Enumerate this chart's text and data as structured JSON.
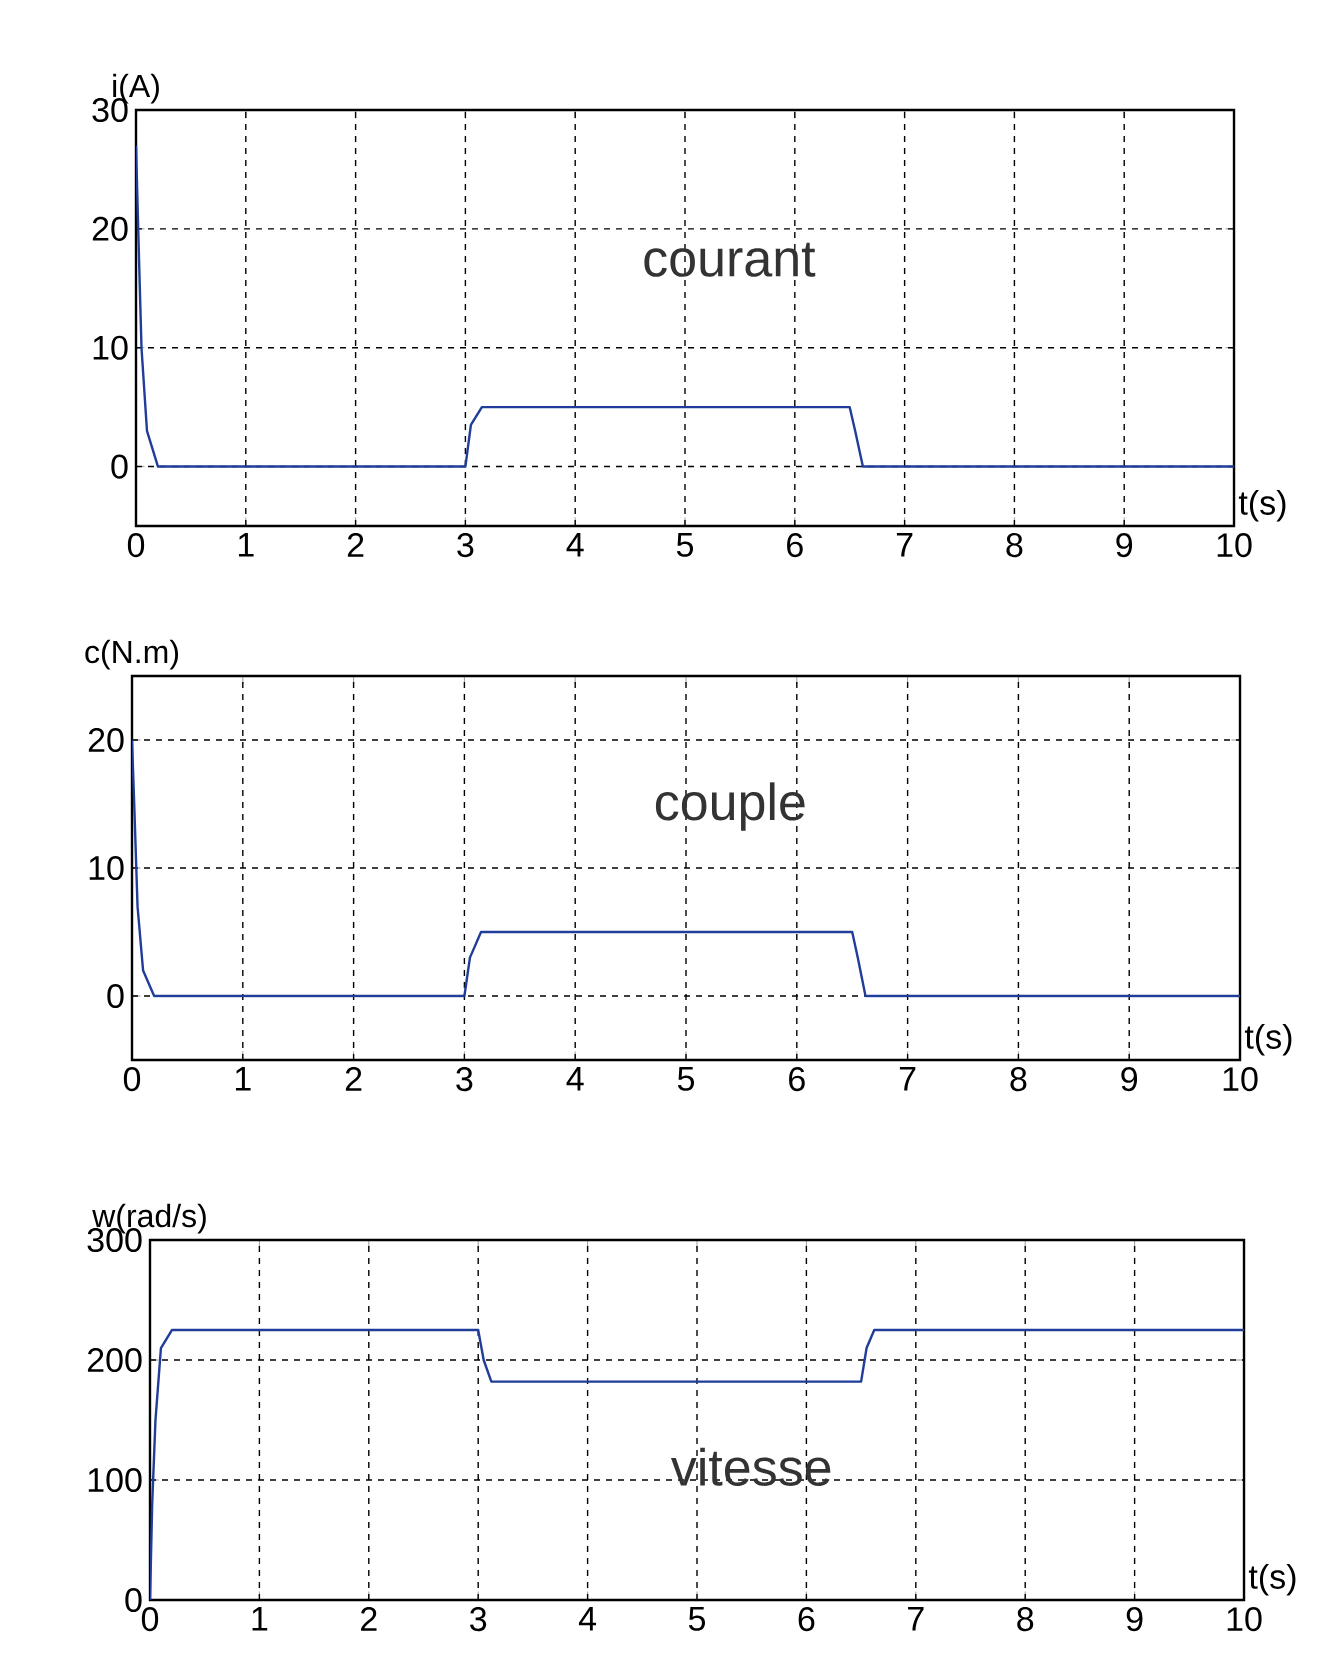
{
  "chart_data": [
    {
      "type": "line",
      "xlabel": "t(s)",
      "ylabel": "i(A)",
      "xlim": [
        0,
        10
      ],
      "ylim": [
        -5,
        30
      ],
      "xticks": [
        0,
        1,
        2,
        3,
        4,
        5,
        6,
        7,
        8,
        9,
        10
      ],
      "yticks": [
        0,
        10,
        20,
        30
      ],
      "grid": true,
      "marker": "none",
      "annotations": [
        "courant"
      ],
      "series": [
        {
          "color": "#1f3d99",
          "x": [
            0,
            0.02,
            0.05,
            0.1,
            0.2,
            3,
            3.05,
            3.15,
            6.5,
            6.55,
            6.62,
            10
          ],
          "values": [
            27,
            20,
            10,
            3,
            0,
            0,
            3.5,
            5,
            5,
            3,
            0,
            0
          ]
        }
      ]
    },
    {
      "type": "line",
      "xlabel": "t(s)",
      "ylabel": "c(N.m)",
      "xlim": [
        0,
        10
      ],
      "ylim": [
        -5,
        25
      ],
      "xticks": [
        0,
        1,
        2,
        3,
        4,
        5,
        6,
        7,
        8,
        9,
        10
      ],
      "yticks": [
        0,
        10,
        20
      ],
      "grid": true,
      "marker": "none",
      "annotations": [
        "couple"
      ],
      "series": [
        {
          "color": "#1f3d99",
          "x": [
            0,
            0.02,
            0.05,
            0.1,
            0.2,
            3,
            3.05,
            3.15,
            6.5,
            6.55,
            6.62,
            10
          ],
          "values": [
            20,
            15,
            7,
            2,
            0,
            0,
            3,
            5,
            5,
            3,
            0,
            0
          ]
        }
      ]
    },
    {
      "type": "line",
      "xlabel": "t(s)",
      "ylabel": "w(rad/s)",
      "xlim": [
        0,
        10
      ],
      "ylim": [
        0,
        300
      ],
      "xticks": [
        0,
        1,
        2,
        3,
        4,
        5,
        6,
        7,
        8,
        9,
        10
      ],
      "yticks": [
        0,
        100,
        200,
        300
      ],
      "grid": true,
      "marker": "none",
      "annotations": [
        "vitesse"
      ],
      "series": [
        {
          "color": "#1f3d99",
          "x": [
            0,
            0.02,
            0.05,
            0.1,
            0.2,
            3,
            3.05,
            3.12,
            6.5,
            6.55,
            6.62,
            10
          ],
          "values": [
            0,
            80,
            150,
            210,
            225,
            225,
            200,
            182,
            182,
            210,
            225,
            225
          ]
        }
      ]
    }
  ]
}
